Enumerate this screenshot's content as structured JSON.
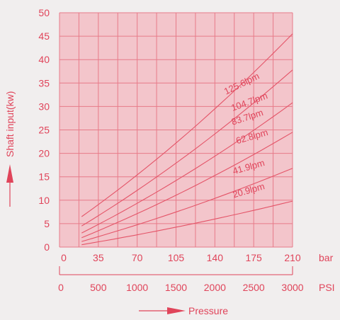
{
  "colors": {
    "plot_bg": "#f3c5cb",
    "grid": "#e77b89",
    "curve": "#e45468",
    "text": "#e0445a",
    "page_bg": "#f1eeee"
  },
  "chart_data": {
    "type": "line",
    "xlabel": "Pressure",
    "ylabel": "Shaft input(kw)",
    "xlim": [
      0,
      210
    ],
    "ylim": [
      0,
      50
    ],
    "grid": true,
    "x_ticks_bar": [
      "0",
      "35",
      "70",
      "105",
      "140",
      "175",
      "210"
    ],
    "x_unit_bar": "bar",
    "x_ticks_psi": [
      "0",
      "500",
      "1000",
      "1500",
      "2000",
      "2500",
      "3000"
    ],
    "x_unit_psi": "PSI",
    "y_ticks": [
      "0",
      "5",
      "10",
      "15",
      "20",
      "25",
      "30",
      "35",
      "40",
      "45",
      "50"
    ],
    "series": [
      {
        "name": "20.9lpm",
        "x": [
          20,
          210
        ],
        "y": [
          0.5,
          9.8
        ]
      },
      {
        "name": "41.9lpm",
        "x": [
          20,
          210
        ],
        "y": [
          1.2,
          16.8
        ]
      },
      {
        "name": "62.8lpm",
        "x": [
          20,
          210
        ],
        "y": [
          2.0,
          24.5
        ]
      },
      {
        "name": "83.7lpm",
        "x": [
          20,
          210
        ],
        "y": [
          3.0,
          30.8
        ]
      },
      {
        "name": "104.7lpm",
        "x": [
          20,
          210
        ],
        "y": [
          4.5,
          37.8
        ]
      },
      {
        "name": "125.6lpm",
        "x": [
          20,
          210
        ],
        "y": [
          6.5,
          45.5
        ]
      }
    ]
  }
}
